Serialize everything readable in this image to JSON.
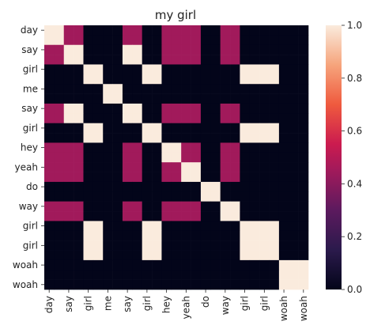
{
  "chart_data": {
    "type": "heatmap",
    "title": "my girl",
    "xlabel": "",
    "ylabel": "",
    "words": [
      "day",
      "day",
      "say",
      "say",
      "girl",
      "girl",
      "me",
      "me",
      "say",
      "say",
      "girl",
      "girl",
      "hey",
      "hey",
      "yeah",
      "yeah",
      "do",
      "do",
      "way",
      "way",
      "girl",
      "girl",
      "girl",
      "girl",
      "woah",
      "woah",
      "woah"
    ],
    "y_tick_labels": [
      "day",
      "say",
      "girl",
      "me",
      "say",
      "girl",
      "hey",
      "yeah",
      "do",
      "way",
      "girl",
      "girl",
      "woah",
      "woah"
    ],
    "x_tick_labels": [
      "day",
      "say",
      "girl",
      "me",
      "say",
      "girl",
      "hey",
      "yeah",
      "do",
      "way",
      "girl",
      "girl",
      "woah",
      "woah"
    ],
    "colorbar": {
      "ticks": [
        0.0,
        0.2,
        0.4,
        0.6,
        0.8,
        1.0
      ],
      "labels": [
        "0.0",
        "0.2",
        "0.4",
        "0.6",
        "0.8",
        "1.0"
      ],
      "range": [
        0,
        1
      ]
    },
    "colormap": "rocket",
    "values_note": "matrix of lexical similarity, 0 = black, 0.5 = magenta, 1 = cream"
  }
}
